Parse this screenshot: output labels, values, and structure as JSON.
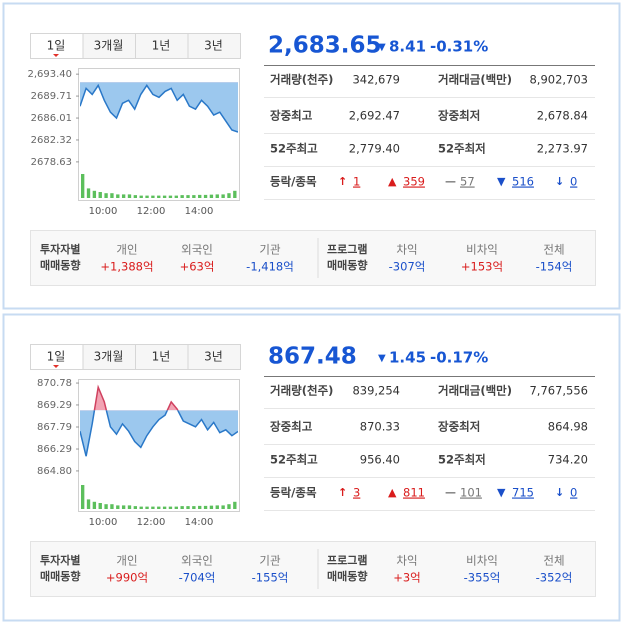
{
  "panels": [
    {
      "tabs": [
        "1일",
        "3개월",
        "1년",
        "3년"
      ],
      "price": {
        "value": 2683.65,
        "label": "2,683.65"
      },
      "direction": "down",
      "change": 8.41,
      "change_pct": "-0.31%",
      "chart": {
        "type": "line",
        "ylim": [
          2677.6,
          2694.1
        ],
        "yticks": [
          {
            "value": 2693.4,
            "label": "2,693.40"
          },
          2689.71,
          2686.01,
          2682.32,
          2678.63
        ],
        "xticks": [
          "10:00",
          "12:00",
          "14:00"
        ],
        "values": [
          2688,
          2691,
          2690,
          2691.5,
          2689,
          2687,
          2686,
          2688.5,
          2689,
          2687.5,
          2690,
          2691.5,
          2690,
          2689.5,
          2690.5,
          2691,
          2689,
          2690,
          2688,
          2687.5,
          2689,
          2688,
          2686.5,
          2687,
          2685.5,
          2684,
          2683.65
        ],
        "volume": [
          10,
          4,
          3,
          2.5,
          2,
          2,
          1.5,
          1.5,
          1.5,
          1.2,
          1,
          1,
          1,
          1,
          1,
          1,
          1,
          1.2,
          1.2,
          1.2,
          1.3,
          1.3,
          1.4,
          1.5,
          1.5,
          2,
          3
        ]
      },
      "stats": [
        [
          "거래량(천주)",
          "342,679",
          "거래대금(백만)",
          "8,902,703"
        ],
        [
          "장중최고",
          "2,692.47",
          "장중최저",
          "2,678.84"
        ],
        [
          "52주최고",
          "2,779.40",
          "52주최저",
          "2,273.97"
        ]
      ],
      "breadth": {
        "label": "등락/종목",
        "items": [
          {
            "symbol": "↑",
            "value": "1"
          },
          {
            "symbol": "▲",
            "value": "359"
          },
          {
            "symbol": "—",
            "value": "57"
          },
          {
            "symbol": "▼",
            "value": "516"
          },
          {
            "symbol": "↓",
            "value": "0"
          }
        ]
      },
      "investors": {
        "title": [
          "투자자별",
          "매매동향"
        ],
        "items": [
          [
            "개인",
            "+1,388억"
          ],
          [
            "외국인",
            "+63억"
          ],
          [
            "기관",
            "-1,418억"
          ]
        ]
      },
      "program": {
        "title": [
          "프로그램",
          "매매동향"
        ],
        "items": [
          [
            "차익",
            "-307억"
          ],
          [
            "비차익",
            "+153억"
          ],
          [
            "전체",
            "-154억"
          ]
        ]
      }
    },
    {
      "tabs": [
        "1일",
        "3개월",
        "1년",
        "3년"
      ],
      "price": {
        "value": 867.48,
        "label": "867.48"
      },
      "direction": "down",
      "change": 1.45,
      "change_pct": "-0.17%",
      "chart": {
        "type": "line",
        "ylim": [
          864.25,
          870.92
        ],
        "yticks": [
          870.78,
          869.29,
          867.79,
          866.29,
          {
            "value": 864.8,
            "label": "864.80"
          }
        ],
        "xticks": [
          "10:00",
          "12:00",
          "14:00"
        ],
        "values": [
          867.5,
          865.8,
          868,
          870.5,
          869.5,
          867.8,
          867.3,
          868,
          867.5,
          866.8,
          866.4,
          867.2,
          867.8,
          868.3,
          868.6,
          869.5,
          869,
          868.2,
          868,
          867.8,
          868.3,
          867.6,
          868.1,
          867.4,
          867.6,
          867.2,
          867.48
        ],
        "volume": [
          10,
          4,
          3,
          2.5,
          2,
          2,
          1.5,
          1.5,
          1.5,
          1.2,
          1,
          1,
          1,
          1,
          1,
          1,
          1,
          1.2,
          1.2,
          1.2,
          1.3,
          1.3,
          1.4,
          1.5,
          1.5,
          2,
          3
        ]
      },
      "stats": [
        [
          "거래량(천주)",
          "839,254",
          "거래대금(백만)",
          "7,767,556"
        ],
        [
          "장중최고",
          "870.33",
          "장중최저",
          "864.98"
        ],
        [
          "52주최고",
          "956.40",
          "52주최저",
          "734.20"
        ]
      ],
      "breadth": {
        "label": "등락/종목",
        "items": [
          {
            "symbol": "↑",
            "value": "3"
          },
          {
            "symbol": "▲",
            "value": "811"
          },
          {
            "symbol": "—",
            "value": "101"
          },
          {
            "symbol": "▼",
            "value": "715"
          },
          {
            "symbol": "↓",
            "value": "0"
          }
        ]
      },
      "investors": {
        "title": [
          "투자자별",
          "매매동향"
        ],
        "items": [
          [
            "개인",
            "+990억"
          ],
          [
            "외국인",
            "-704억"
          ],
          [
            "기관",
            "-155억"
          ]
        ]
      },
      "program": {
        "title": [
          "프로그램",
          "매매동향"
        ],
        "items": [
          [
            "차익",
            "+3억"
          ],
          [
            "비차익",
            "-355억"
          ],
          [
            "전체",
            "-352억"
          ]
        ]
      }
    }
  ]
}
